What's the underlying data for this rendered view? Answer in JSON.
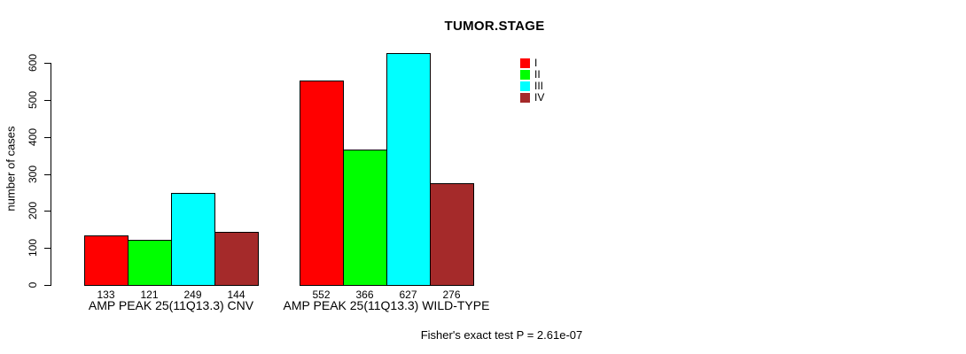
{
  "chart": {
    "title": "TUMOR.STAGE",
    "ylabel": "number of cases",
    "annotation": "Fisher's exact test P = 2.61e-07"
  },
  "legend": {
    "items": [
      {
        "label": "I",
        "color": "#FF0000"
      },
      {
        "label": "II",
        "color": "#00FF00"
      },
      {
        "label": "III",
        "color": "#00FFFF"
      },
      {
        "label": "IV",
        "color": "#A52A2A"
      }
    ]
  },
  "chart_data": {
    "type": "bar",
    "title": "TUMOR.STAGE",
    "xlabel": "",
    "ylabel": "number of cases",
    "annotation": "Fisher's exact test P = 2.61e-07",
    "categories": [
      "AMP PEAK 25(11Q13.3) CNV",
      "AMP PEAK 25(11Q13.3) WILD-TYPE"
    ],
    "series": [
      {
        "name": "I",
        "color": "#FF0000",
        "values": [
          133,
          552
        ]
      },
      {
        "name": "II",
        "color": "#00FF00",
        "values": [
          121,
          366
        ]
      },
      {
        "name": "III",
        "color": "#00FFFF",
        "values": [
          249,
          627
        ]
      },
      {
        "name": "IV",
        "color": "#A52A2A",
        "values": [
          144,
          276
        ]
      }
    ],
    "show_bar_values": true,
    "yticks": [
      0,
      100,
      200,
      300,
      400,
      500,
      600
    ],
    "ylim": [
      0,
      630
    ],
    "grid": false,
    "legend_position": "top-right"
  }
}
